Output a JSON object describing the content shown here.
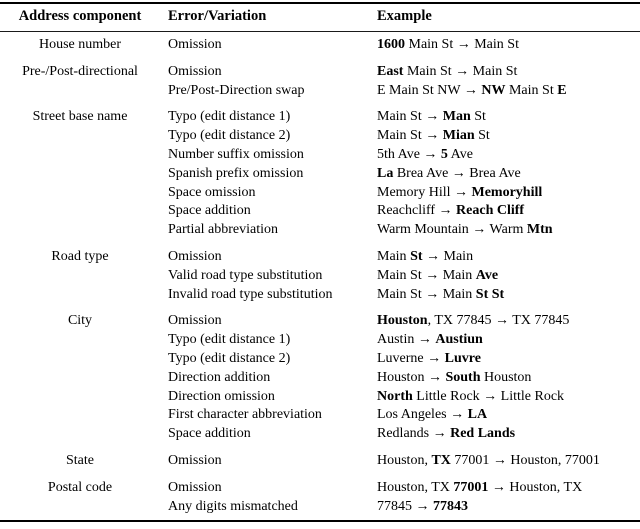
{
  "table": {
    "headers": [
      "Address component",
      "Error/Variation",
      "Example"
    ],
    "arrow_glyph": "→",
    "groups": [
      {
        "component": "House number",
        "rows": [
          {
            "variation": "Omission",
            "example": [
              {
                "text": "1600",
                "bold": true
              },
              {
                "text": " Main St → Main St",
                "bold": false
              }
            ]
          }
        ]
      },
      {
        "component": "Pre-/Post-directional",
        "rows": [
          {
            "variation": "Omission",
            "example": [
              {
                "text": "East",
                "bold": true
              },
              {
                "text": " Main St → Main St",
                "bold": false
              }
            ]
          },
          {
            "variation": "Pre/Post-Direction swap",
            "example": [
              {
                "text": "E Main St NW → ",
                "bold": false
              },
              {
                "text": "NW",
                "bold": true
              },
              {
                "text": " Main St ",
                "bold": false
              },
              {
                "text": "E",
                "bold": true
              }
            ]
          }
        ]
      },
      {
        "component": "Street base name",
        "rows": [
          {
            "variation": "Typo (edit distance 1)",
            "example": [
              {
                "text": "Main St → ",
                "bold": false
              },
              {
                "text": "Man",
                "bold": true
              },
              {
                "text": " St",
                "bold": false
              }
            ]
          },
          {
            "variation": "Typo (edit distance 2)",
            "example": [
              {
                "text": "Main St → ",
                "bold": false
              },
              {
                "text": "Mian",
                "bold": true
              },
              {
                "text": " St",
                "bold": false
              }
            ]
          },
          {
            "variation": "Number suffix omission",
            "example": [
              {
                "text": "5th Ave → ",
                "bold": false
              },
              {
                "text": "5",
                "bold": true
              },
              {
                "text": " Ave",
                "bold": false
              }
            ]
          },
          {
            "variation": "Spanish prefix omission",
            "example": [
              {
                "text": "La",
                "bold": true
              },
              {
                "text": " Brea Ave → Brea Ave",
                "bold": false
              }
            ]
          },
          {
            "variation": "Space omission",
            "example": [
              {
                "text": "Memory Hill → ",
                "bold": false
              },
              {
                "text": "Memoryhill",
                "bold": true
              }
            ]
          },
          {
            "variation": "Space addition",
            "example": [
              {
                "text": "Reachcliff → ",
                "bold": false
              },
              {
                "text": "Reach Cliff",
                "bold": true
              }
            ]
          },
          {
            "variation": "Partial abbreviation",
            "example": [
              {
                "text": "Warm Mountain → Warm ",
                "bold": false
              },
              {
                "text": "Mtn",
                "bold": true
              }
            ]
          }
        ]
      },
      {
        "component": "Road type",
        "rows": [
          {
            "variation": "Omission",
            "example": [
              {
                "text": "Main ",
                "bold": false
              },
              {
                "text": "St",
                "bold": true
              },
              {
                "text": " → Main",
                "bold": false
              }
            ]
          },
          {
            "variation": "Valid road type substitution",
            "example": [
              {
                "text": "Main St → Main ",
                "bold": false
              },
              {
                "text": "Ave",
                "bold": true
              }
            ]
          },
          {
            "variation": "Invalid road type substitution",
            "example": [
              {
                "text": "Main St → Main ",
                "bold": false
              },
              {
                "text": "St St",
                "bold": true
              }
            ]
          }
        ]
      },
      {
        "component": "City",
        "rows": [
          {
            "variation": "Omission",
            "example": [
              {
                "text": "Houston",
                "bold": true
              },
              {
                "text": ", TX 77845 → TX 77845",
                "bold": false
              }
            ]
          },
          {
            "variation": "Typo (edit distance 1)",
            "example": [
              {
                "text": "Austin → ",
                "bold": false
              },
              {
                "text": "Austiun",
                "bold": true
              }
            ]
          },
          {
            "variation": "Typo (edit distance 2)",
            "example": [
              {
                "text": "Luverne → ",
                "bold": false
              },
              {
                "text": "Luvre",
                "bold": true
              }
            ]
          },
          {
            "variation": "Direction addition",
            "example": [
              {
                "text": "Houston → ",
                "bold": false
              },
              {
                "text": "South",
                "bold": true
              },
              {
                "text": " Houston",
                "bold": false
              }
            ]
          },
          {
            "variation": "Direction omission",
            "example": [
              {
                "text": "North",
                "bold": true
              },
              {
                "text": " Little Rock → Little Rock",
                "bold": false
              }
            ]
          },
          {
            "variation": "First character abbreviation",
            "example": [
              {
                "text": "Los Angeles → ",
                "bold": false
              },
              {
                "text": "LA",
                "bold": true
              }
            ]
          },
          {
            "variation": "Space addition",
            "example": [
              {
                "text": "Redlands → ",
                "bold": false
              },
              {
                "text": "Red Lands",
                "bold": true
              }
            ]
          }
        ]
      },
      {
        "component": "State",
        "rows": [
          {
            "variation": "Omission",
            "example": [
              {
                "text": "Houston, ",
                "bold": false
              },
              {
                "text": "TX",
                "bold": true
              },
              {
                "text": " 77001 → Houston, 77001",
                "bold": false
              }
            ]
          }
        ]
      },
      {
        "component": "Postal code",
        "rows": [
          {
            "variation": "Omission",
            "example": [
              {
                "text": "Houston, TX ",
                "bold": false
              },
              {
                "text": "77001",
                "bold": true
              },
              {
                "text": " → Houston, TX",
                "bold": false
              }
            ]
          },
          {
            "variation": "Any digits mismatched",
            "example": [
              {
                "text": "77845 → ",
                "bold": false
              },
              {
                "text": "77843",
                "bold": true
              }
            ]
          }
        ]
      }
    ]
  }
}
